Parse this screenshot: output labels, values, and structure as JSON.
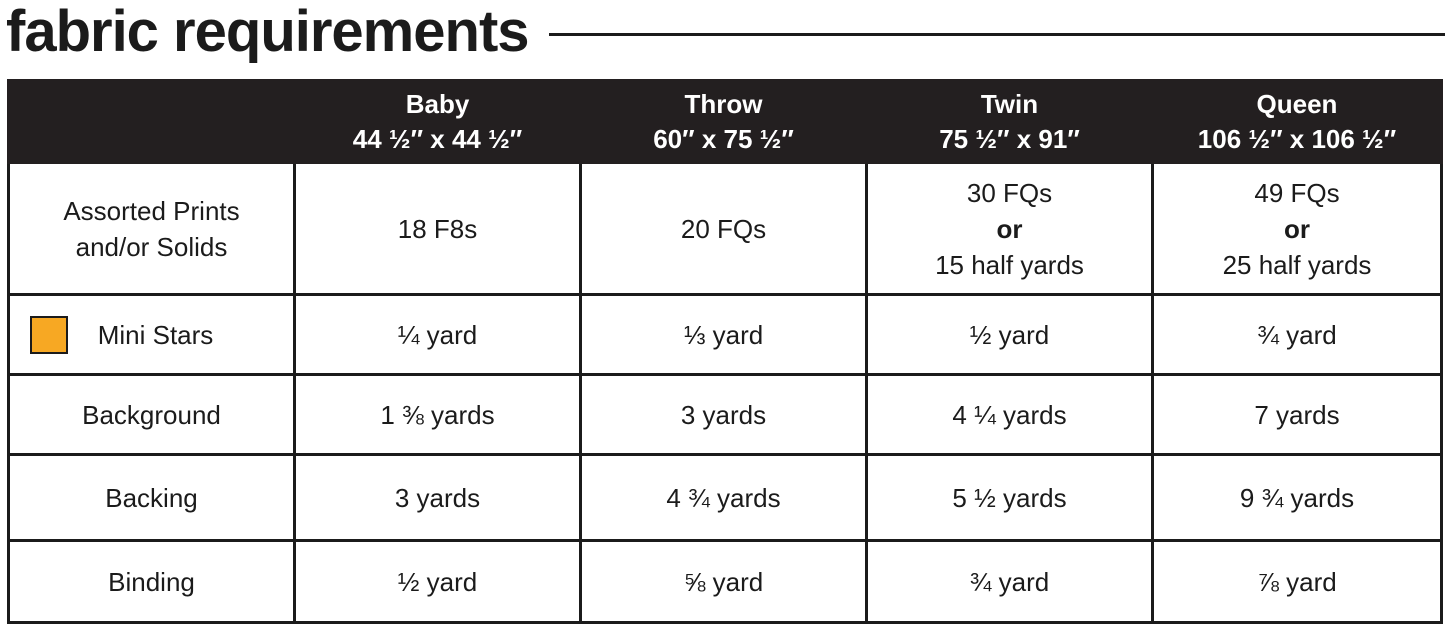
{
  "title": "fabric requirements",
  "columns": [
    {
      "name": "Baby",
      "size": "44 ½″ x 44 ½″"
    },
    {
      "name": "Throw",
      "size": "60″ x 75 ½″"
    },
    {
      "name": "Twin",
      "size": "75 ½″ x 91″"
    },
    {
      "name": "Queen",
      "size": "106 ½″ x 106 ½″"
    }
  ],
  "rows": {
    "assorted": {
      "label_line1": "Assorted Prints",
      "label_line2": "and/or Solids",
      "baby": "18 F8s",
      "throw": "20 FQs",
      "twin": {
        "line1": "30 FQs",
        "or": "or",
        "line2": "15 half yards"
      },
      "queen": {
        "line1": "49 FQs",
        "or": "or",
        "line2": "25 half yards"
      }
    },
    "mini_stars": {
      "label": "Mini Stars",
      "swatch_color": "#f7a823",
      "values": [
        "¼ yard",
        "⅓ yard",
        "½ yard",
        "¾ yard"
      ]
    },
    "background": {
      "label": "Background",
      "values": [
        "1 ⅜ yards",
        "3 yards",
        "4 ¼ yards",
        "7 yards"
      ]
    },
    "backing": {
      "label": "Backing",
      "values": [
        "3 yards",
        "4 ¾ yards",
        "5 ½ yards",
        "9 ¾ yards"
      ]
    },
    "binding": {
      "label": "Binding",
      "values": [
        "½ yard",
        "⅝ yard",
        "¾ yard",
        "⅞ yard"
      ]
    }
  },
  "colors": {
    "header_bg": "#231f20",
    "header_text": "#ffffff",
    "text": "#1b1b1b",
    "accent_swatch": "#f7a823"
  }
}
